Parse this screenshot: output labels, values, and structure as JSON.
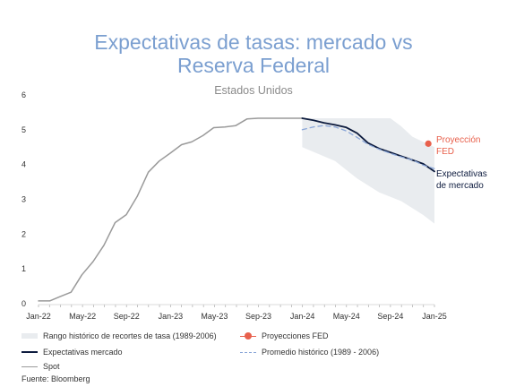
{
  "chart_data": {
    "type": "line",
    "title": "Expectativas de tasas: mercado vs Reserva Federal",
    "title_lines": [
      "Expectativas de tasas: mercado vs",
      "Reserva Federal"
    ],
    "subtitle": "Estados Unidos",
    "xlabel": "",
    "ylabel": "",
    "x_ticks": [
      "Jan-22",
      "May-22",
      "Sep-22",
      "Jan-23",
      "May-23",
      "Sep-23",
      "Jan-24",
      "May-24",
      "Sep-24",
      "Jan-25"
    ],
    "x_range": [
      "2022-01",
      "2025-01"
    ],
    "ylim": [
      0,
      6
    ],
    "y_ticks": [
      "0",
      "1",
      "2",
      "3",
      "4",
      "5",
      "6"
    ],
    "grid": false,
    "legend_position": "bottom",
    "series": [
      {
        "name": "Spot",
        "style": "line",
        "color": "#9a9a9a",
        "points": [
          [
            "2022-01-01",
            0.08
          ],
          [
            "2022-02-01",
            0.08
          ],
          [
            "2022-03-01",
            0.2
          ],
          [
            "2022-04-01",
            0.33
          ],
          [
            "2022-05-01",
            0.83
          ],
          [
            "2022-06-01",
            1.21
          ],
          [
            "2022-07-01",
            1.68
          ],
          [
            "2022-08-01",
            2.33
          ],
          [
            "2022-09-01",
            2.56
          ],
          [
            "2022-10-01",
            3.08
          ],
          [
            "2022-11-01",
            3.78
          ],
          [
            "2022-12-01",
            4.1
          ],
          [
            "2023-01-01",
            4.33
          ],
          [
            "2023-02-01",
            4.57
          ],
          [
            "2023-03-01",
            4.65
          ],
          [
            "2023-04-01",
            4.83
          ],
          [
            "2023-05-01",
            5.06
          ],
          [
            "2023-06-01",
            5.08
          ],
          [
            "2023-07-01",
            5.12
          ],
          [
            "2023-08-01",
            5.31
          ],
          [
            "2023-09-01",
            5.33
          ],
          [
            "2023-10-01",
            5.33
          ],
          [
            "2023-11-01",
            5.33
          ],
          [
            "2023-12-01",
            5.33
          ],
          [
            "2024-01-01",
            5.33
          ]
        ]
      },
      {
        "name": "Expectativas mercado",
        "label": "Expectativas de mercado",
        "style": "line",
        "color": "#0d1b3e",
        "points": [
          [
            "2024-01-01",
            5.33
          ],
          [
            "2024-02-01",
            5.27
          ],
          [
            "2024-03-01",
            5.2
          ],
          [
            "2024-04-01",
            5.14
          ],
          [
            "2024-05-01",
            5.07
          ],
          [
            "2024-06-01",
            4.9
          ],
          [
            "2024-07-01",
            4.62
          ],
          [
            "2024-08-01",
            4.46
          ],
          [
            "2024-09-01",
            4.35
          ],
          [
            "2024-10-01",
            4.24
          ],
          [
            "2024-11-01",
            4.13
          ],
          [
            "2024-12-01",
            4.02
          ],
          [
            "2025-01-01",
            3.8
          ]
        ]
      },
      {
        "name": "Promedio histórico (1989 - 2006)",
        "style": "dashed",
        "color": "#8aa6d8",
        "points": [
          [
            "2024-01-01",
            5.0
          ],
          [
            "2024-02-01",
            5.08
          ],
          [
            "2024-03-01",
            5.12
          ],
          [
            "2024-04-01",
            5.08
          ],
          [
            "2024-05-01",
            4.97
          ],
          [
            "2024-06-01",
            4.78
          ],
          [
            "2024-07-01",
            4.58
          ],
          [
            "2024-08-01",
            4.44
          ],
          [
            "2024-09-01",
            4.32
          ],
          [
            "2024-10-01",
            4.22
          ],
          [
            "2024-11-01",
            4.13
          ],
          [
            "2024-12-01",
            3.98
          ],
          [
            "2025-01-01",
            3.88
          ]
        ]
      },
      {
        "name": "Proyecciones FED",
        "label": "Proyección FED",
        "style": "point",
        "color": "#e8604c",
        "points": [
          [
            "2024-12-15",
            4.6
          ]
        ]
      }
    ],
    "band": {
      "name": "Rango histórico de recortes de tasa (1989-2006)",
      "color": "#e9ecef",
      "upper": [
        [
          "2024-01-01",
          5.33
        ],
        [
          "2024-09-01",
          5.33
        ],
        [
          "2024-10-01",
          5.1
        ],
        [
          "2024-11-01",
          4.8
        ],
        [
          "2025-01-01",
          4.5
        ]
      ],
      "lower": [
        [
          "2024-01-01",
          4.5
        ],
        [
          "2024-04-01",
          4.1
        ],
        [
          "2024-06-01",
          3.6
        ],
        [
          "2024-08-01",
          3.2
        ],
        [
          "2024-10-01",
          2.95
        ],
        [
          "2024-12-01",
          2.55
        ],
        [
          "2025-01-01",
          2.3
        ]
      ]
    }
  },
  "legend": {
    "band": "Rango histórico de recortes de tasa (1989-2006)",
    "fed": "Proyecciones FED",
    "market": "Expectativas mercado",
    "avg": "Promedio histórico (1989 - 2006)",
    "spot": "Spot"
  },
  "annotations": {
    "fed_line1": "Proyección",
    "fed_line2": "FED",
    "market_line1": "Expectativas",
    "market_line2": "de mercado"
  },
  "source": "Fuente: Bloomberg"
}
